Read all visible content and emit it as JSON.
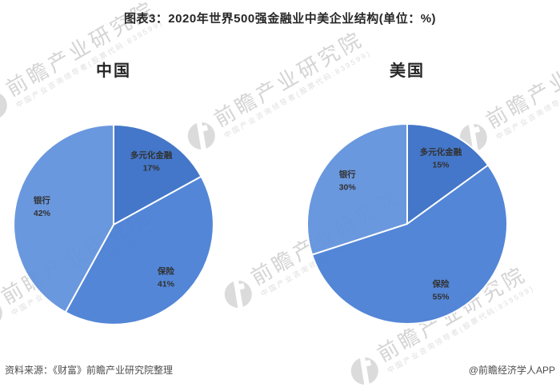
{
  "title": "图表3：2020年世界500强金融业中美企业结构(单位：%)",
  "footer": {
    "source": "资料来源：《财富》前瞻产业研究院整理",
    "credit": "@前瞻经济学人APP"
  },
  "watermark": {
    "brand": "前瞻产业研究院",
    "tagline": "中国产业咨询领导者(股票代码:839599)"
  },
  "colors": {
    "slice_diversified": "#3a70c7",
    "slice_insurance": "#4a80d5",
    "slice_bank": "#6393dd",
    "divider": "#ffffff",
    "label_text": "#262626",
    "footer_text": "#4d4d4d",
    "watermark_gray": "#d4d4d4"
  },
  "chart_data": [
    {
      "type": "pie",
      "title": "中国",
      "categories": [
        "多元化金融",
        "保险",
        "银行"
      ],
      "values": [
        17,
        41,
        42
      ],
      "unit": "%",
      "start_angle_deg": 0,
      "direction": "clockwise",
      "colors": [
        "#3a70c7",
        "#4a80d5",
        "#6393dd"
      ],
      "labels_on_slices": true,
      "legend": "none"
    },
    {
      "type": "pie",
      "title": "美国",
      "categories": [
        "多元化金融",
        "保险",
        "银行"
      ],
      "values": [
        15,
        55,
        30
      ],
      "unit": "%",
      "start_angle_deg": 0,
      "direction": "clockwise",
      "colors": [
        "#3a70c7",
        "#4a80d5",
        "#6393dd"
      ],
      "labels_on_slices": true,
      "legend": "none"
    }
  ]
}
